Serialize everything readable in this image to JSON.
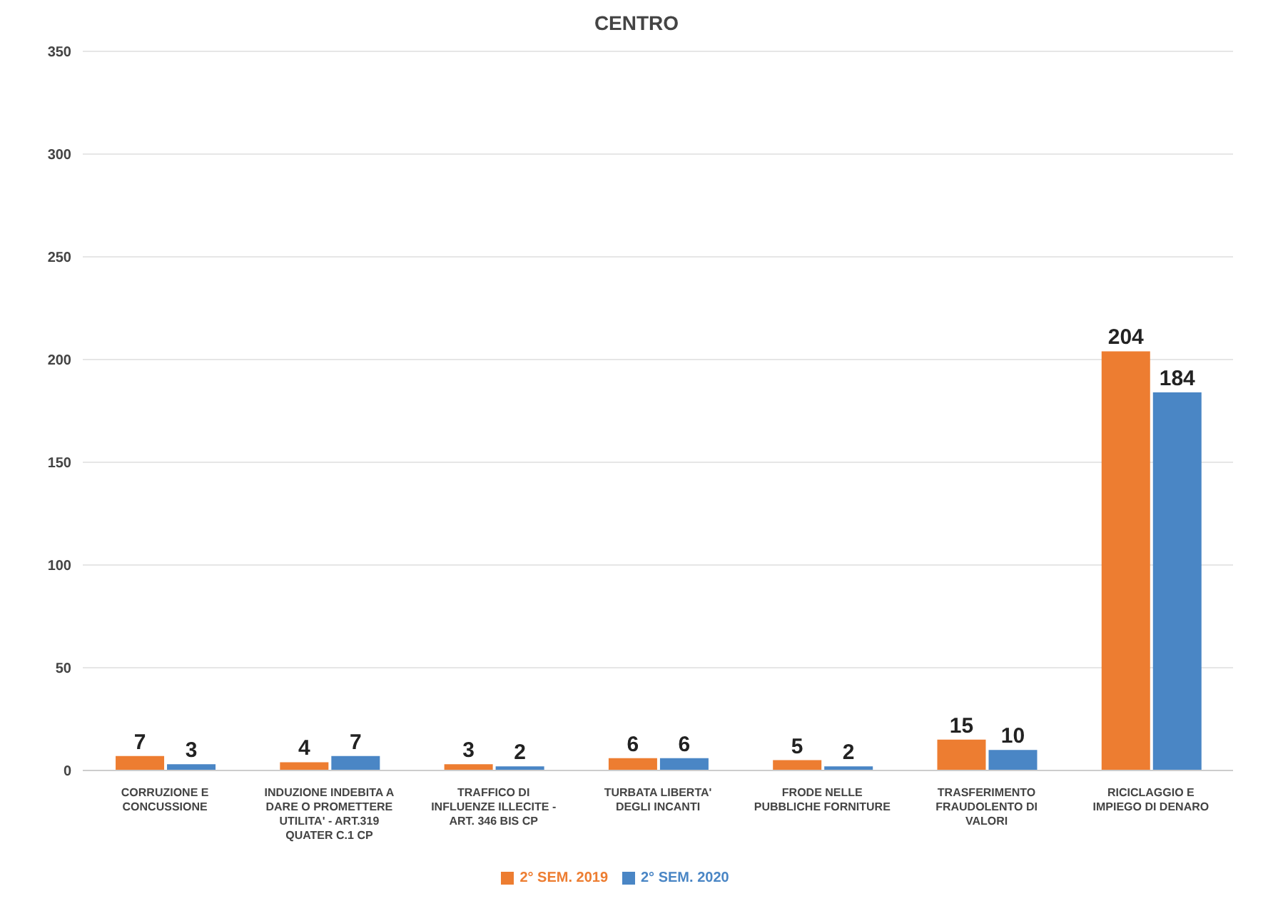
{
  "chart_data": {
    "type": "bar",
    "title": "CENTRO",
    "categories": [
      "CORRUZIONE E CONCUSSIONE",
      "INDUZIONE INDEBITA A DARE O PROMETTERE UTILITA' - ART.319 QUATER C.1 CP",
      "TRAFFICO DI INFLUENZE ILLECITE - ART. 346 BIS CP",
      "TURBATA LIBERTA' DEGLI INCANTI",
      "FRODE NELLE PUBBLICHE FORNITURE",
      "TRASFERIMENTO FRAUDOLENTO DI VALORI",
      "RICICLAGGIO E IMPIEGO DI DENARO"
    ],
    "series": [
      {
        "name": "2° SEM. 2019",
        "color": "#ed7d31",
        "values": [
          7,
          4,
          3,
          6,
          5,
          15,
          204
        ]
      },
      {
        "name": "2° SEM. 2020",
        "color": "#4a86c5",
        "values": [
          3,
          7,
          2,
          6,
          2,
          10,
          184
        ]
      }
    ],
    "ylim": [
      0,
      350
    ],
    "yticks": [
      0,
      50,
      100,
      150,
      200,
      250,
      300,
      350
    ],
    "grid": "y",
    "legend": "bottom",
    "data_labels": true
  }
}
